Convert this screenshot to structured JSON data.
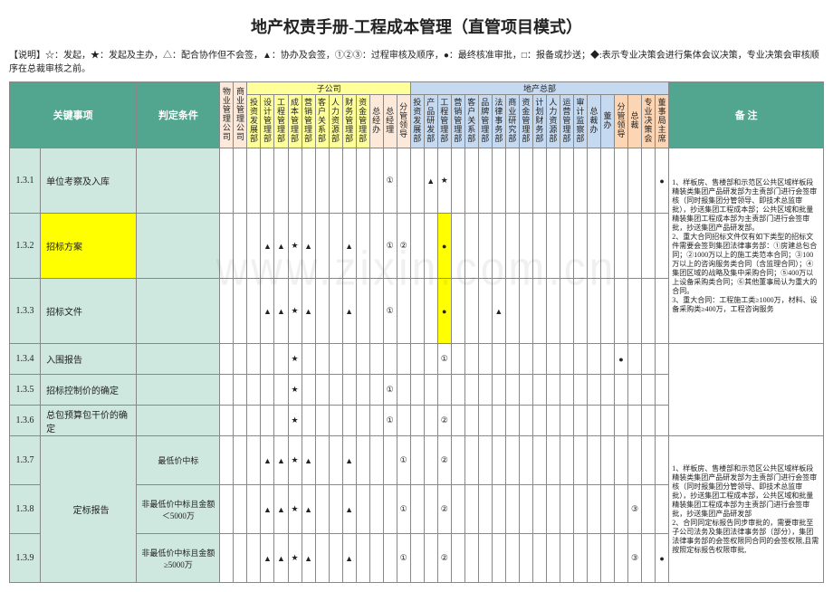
{
  "title": "地产权责手册-工程成本管理（直管项目模式）",
  "legend": "【说明】☆：发起，★：发起及主办，△：配合协作但不会签，▲：协办及会签，①②③：过程审核及顺序，●：最终核准审批，□：报备或抄送；◆:表示专业决策会进行集体会议决策，专业决策会审核顺序在总裁审核之前。",
  "headers": {
    "key": "关键事项",
    "cond": "判定条件",
    "sub": "子公司",
    "hq": "地产总部",
    "remark": "备   注",
    "depts": [
      "物业管理公司",
      "商业管理公司",
      "投资发展部",
      "设计管理部",
      "工程管理部",
      "成本管理部",
      "营销管理部",
      "客户关系部",
      "人力资源部",
      "财务管理部",
      "资金管理部",
      "总经办",
      "总经理",
      "分管领导",
      "投资发展部",
      "产品研发部",
      "工程管理部",
      "营销管理部",
      "客户关系部",
      "品牌管理部",
      "法律事务部",
      "商业研究部",
      "资金管理部",
      "计划财务部",
      "人力资源部",
      "运营管理部",
      "审计监察部",
      "总裁办",
      "董办",
      "分管领导",
      "总裁",
      "专业决策会",
      "董事局主席"
    ]
  },
  "rows": [
    {
      "n": "1.3.1",
      "key": "单位考察及入库",
      "cells": [
        "",
        "",
        "",
        "",
        "",
        "",
        "",
        "",
        "",
        "",
        "",
        "",
        "①",
        "",
        "",
        "▲",
        "★",
        "",
        "",
        "",
        "",
        "",
        "",
        "",
        "",
        "",
        "",
        "",
        "",
        "",
        "",
        "",
        "●"
      ],
      "remark": "1、样板房、售楼部和示范区公共区域样板段精装类集团产品研发部为主责部门进行会签审核（同时报集团分管领导、即技术总监审批），抄送集团工程成本部；公共区域和批量精装集团工程成本部为主责部门进行会签审批，抄送集团产品研发部。"
    },
    {
      "n": "1.3.2",
      "key": "招标方案",
      "hl": true,
      "cells": [
        "",
        "",
        "",
        "▲",
        "▲",
        "★",
        "▲",
        "",
        "",
        "▲",
        "",
        "",
        "①",
        "②",
        "",
        "",
        "●",
        "",
        "",
        "",
        "",
        "",
        "",
        "",
        "",
        "",
        "",
        "",
        "",
        "",
        "",
        "",
        ""
      ],
      "remark": "2、重大合同招标文件仅有如下类型的招标文件需要会签到集团法律事务部：①房建总包合同；②1000万以上的施工类范本合同；③100万以上的咨询服务类合同（含监理合同）；④集团区域的战略及集中采购合同；⑤400万以上设备采购类合同；⑥其他董事局认为重大的合同。"
    },
    {
      "n": "1.3.3",
      "key": "招标文件",
      "cells": [
        "",
        "",
        "",
        "▲",
        "▲",
        "★",
        "▲",
        "",
        "",
        "▲",
        "",
        "",
        "①",
        "",
        "",
        "",
        "●",
        "",
        "",
        "",
        "▲",
        "",
        "",
        "",
        "",
        "",
        "",
        "",
        "",
        "",
        "",
        "",
        ""
      ],
      "remark": "3、重大合同：工程施工类≥1000万，材料、设备采购类≥400万，工程咨询服务"
    },
    {
      "n": "1.3.4",
      "key": "入围报告",
      "cells": [
        "",
        "",
        "",
        "",
        "",
        "★",
        "",
        "",
        "",
        "",
        "",
        "",
        "",
        "",
        "",
        "",
        "①",
        "",
        "",
        "",
        "",
        "",
        "",
        "",
        "",
        "",
        "",
        "",
        "",
        "●",
        "",
        "",
        ""
      ],
      "remark": ""
    },
    {
      "n": "1.3.5",
      "key": "招标控制价的确定",
      "cells": [
        "",
        "",
        "",
        "",
        "",
        "★",
        "",
        "",
        "",
        "",
        "",
        "",
        "①",
        "",
        "",
        "",
        "",
        "",
        "",
        "",
        "",
        "",
        "",
        "",
        "",
        "",
        "",
        "",
        "",
        "",
        "",
        "",
        ""
      ],
      "remark": ""
    },
    {
      "n": "1.3.6",
      "key": "总包预算包干价的确定",
      "cells": [
        "",
        "",
        "",
        "",
        "",
        "★",
        "",
        "",
        "",
        "",
        "",
        "",
        "①",
        "",
        "",
        "",
        "②",
        "",
        "",
        "",
        "",
        "",
        "",
        "",
        "",
        "",
        "",
        "",
        "",
        "",
        "",
        "",
        ""
      ],
      "remark": ""
    },
    {
      "n": "1.3.7",
      "key": "",
      "keyGroup": "定标报告",
      "cond": "最低价中标",
      "cells": [
        "",
        "",
        "",
        "▲",
        "▲",
        "★",
        "▲",
        "",
        "",
        "▲",
        "",
        "",
        "",
        "①",
        "",
        "",
        "②",
        "",
        "",
        "",
        "",
        "",
        "",
        "",
        "",
        "",
        "",
        "",
        "",
        "",
        "",
        "",
        ""
      ],
      "remark": "1、样板房、售楼部和示范区公共区域样板段精装类集团产品研发部为主责部门进行会签审核（同时报集团分管领导、即技术总监审批），抄送集团工程成本部，公共区域和批量精装集团工程成本部为主责部门进行会签审批，抄送集团产品研发部"
    },
    {
      "n": "1.3.8",
      "key": "",
      "cond": "非最低价中标且金额＜5000万",
      "cells": [
        "",
        "",
        "",
        "▲",
        "▲",
        "★",
        "▲",
        "",
        "",
        "▲",
        "",
        "",
        "",
        "①",
        "",
        "",
        "②",
        "",
        "",
        "",
        "",
        "",
        "",
        "",
        "",
        "",
        "",
        "",
        "",
        "",
        "③",
        "",
        ""
      ],
      "remark": "2、合同同定标报告同步审批的，需要审批至子公司法务及集团法律事务部（部分），集团法律事务部的会签权限同合同的会签权限,且需按照定标报告权限审批,"
    },
    {
      "n": "1.3.9",
      "key": "",
      "cond": "非最低价中标且金额≥5000万",
      "cells": [
        "",
        "",
        "",
        "▲",
        "▲",
        "★",
        "▲",
        "",
        "",
        "▲",
        "",
        "",
        "",
        "①",
        "",
        "",
        "②",
        "",
        "",
        "",
        "",
        "",
        "",
        "",
        "",
        "",
        "",
        "",
        "",
        "",
        "③",
        "",
        "●"
      ],
      "remark": ""
    }
  ],
  "watermark": "www.zixin.com.cn"
}
